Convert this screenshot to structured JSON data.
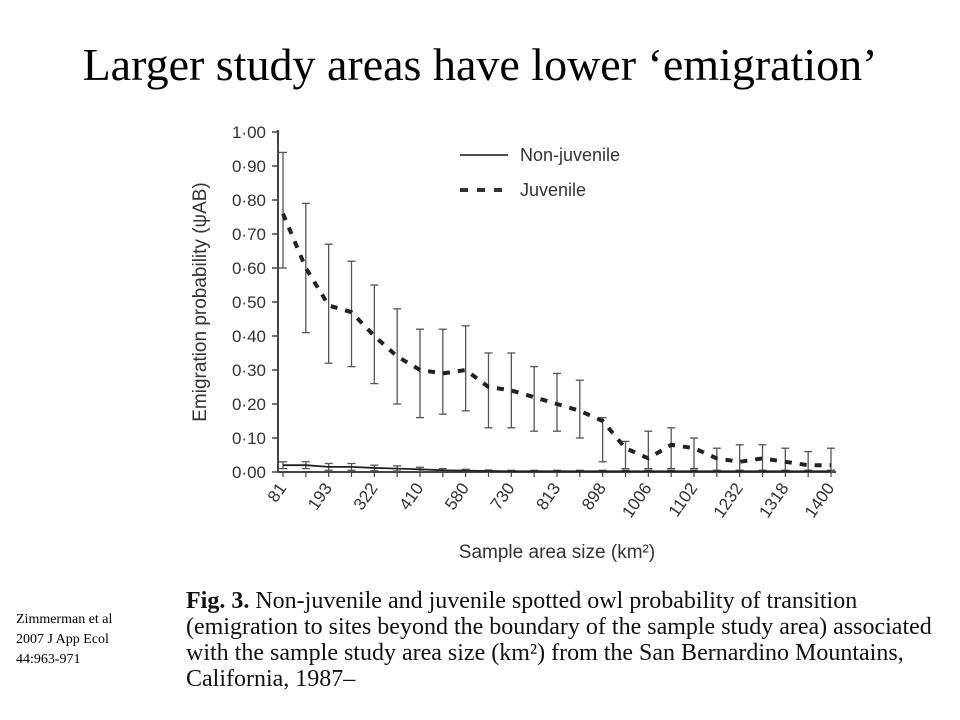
{
  "slide": {
    "title": "Larger study areas have lower ‘emigration’",
    "citation": [
      "Zimmerman et al",
      "2007 J App Ecol",
      "44:963-971"
    ]
  },
  "caption": {
    "label": "Fig. 3.",
    "text": "Non-juvenile and juvenile spotted owl probability of transition (emigration to sites beyond the boundary of the sample study area) associated with the sample study area size (km²) from the San Bernardino Mountains, California, 1987–"
  },
  "chart_data": {
    "type": "line",
    "xlabel": "Sample area size (km²)",
    "ylabel": "Emigration probability (ψAB)",
    "ylim": [
      0,
      1
    ],
    "yticks": [
      "0·00",
      "0·10",
      "0·20",
      "0·30",
      "0·40",
      "0·50",
      "0·60",
      "0·70",
      "0·80",
      "0·90",
      "1·00"
    ],
    "x": [
      81,
      137,
      193,
      257,
      322,
      366,
      410,
      495,
      580,
      655,
      730,
      772,
      813,
      856,
      898,
      952,
      1006,
      1054,
      1102,
      1167,
      1232,
      1275,
      1318,
      1359,
      1400
    ],
    "xtick_labels": [
      "81",
      "193",
      "322",
      "410",
      "580",
      "730",
      "813",
      "898",
      "1006",
      "1102",
      "1232",
      "1318",
      "1400"
    ],
    "legend_position": "top-right",
    "grid": false,
    "series": [
      {
        "name": "Non-juvenile",
        "style": "solid",
        "values": [
          0.02,
          0.02,
          0.015,
          0.015,
          0.012,
          0.01,
          0.008,
          0.005,
          0.004,
          0.003,
          0.002,
          0.002,
          0.002,
          0.002,
          0.002,
          0.002,
          0.002,
          0.002,
          0.002,
          0.002,
          0.002,
          0.002,
          0.002,
          0.002,
          0.002
        ],
        "lower": [
          0.01,
          0.01,
          0.005,
          0.005,
          0.004,
          0.003,
          0.002,
          0.001,
          0.001,
          0.001,
          0.001,
          0.001,
          0.001,
          0.001,
          0.001,
          0.001,
          0.001,
          0.001,
          0.001,
          0.001,
          0.001,
          0.001,
          0.001,
          0.001,
          0.001
        ],
        "upper": [
          0.03,
          0.03,
          0.025,
          0.025,
          0.02,
          0.018,
          0.014,
          0.01,
          0.008,
          0.006,
          0.005,
          0.005,
          0.005,
          0.005,
          0.005,
          0.005,
          0.005,
          0.005,
          0.005,
          0.005,
          0.005,
          0.005,
          0.005,
          0.005,
          0.005
        ]
      },
      {
        "name": "Juvenile",
        "style": "dashed",
        "values": [
          0.76,
          0.6,
          0.49,
          0.47,
          0.4,
          0.34,
          0.3,
          0.29,
          0.3,
          0.25,
          0.24,
          0.22,
          0.2,
          0.18,
          0.15,
          0.07,
          0.04,
          0.08,
          0.07,
          0.04,
          0.03,
          0.04,
          0.03,
          0.02,
          0.02
        ],
        "lower": [
          0.6,
          0.41,
          0.32,
          0.31,
          0.26,
          0.2,
          0.16,
          0.17,
          0.18,
          0.13,
          0.13,
          0.12,
          0.12,
          0.1,
          0.03,
          0.01,
          0.01,
          0.01,
          0.01,
          0.005,
          0.005,
          0.005,
          0.005,
          0.005,
          0.005
        ],
        "upper": [
          0.94,
          0.79,
          0.67,
          0.62,
          0.55,
          0.48,
          0.42,
          0.42,
          0.43,
          0.35,
          0.35,
          0.31,
          0.29,
          0.27,
          0.16,
          0.09,
          0.12,
          0.13,
          0.1,
          0.07,
          0.08,
          0.08,
          0.07,
          0.06,
          0.07
        ]
      }
    ]
  }
}
